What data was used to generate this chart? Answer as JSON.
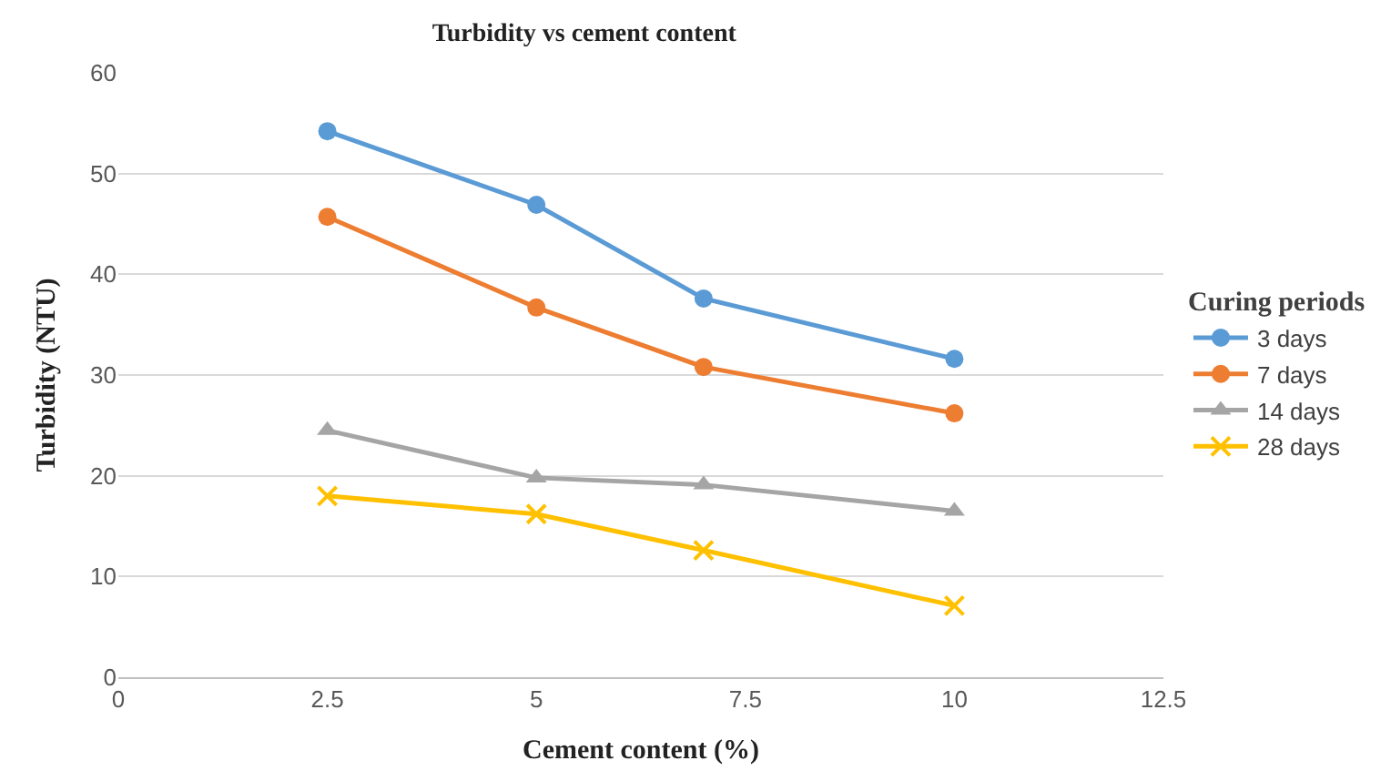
{
  "chart_data": {
    "type": "line",
    "title": "Turbidity vs cement content",
    "xlabel": "Cement content (%)",
    "ylabel": "Turbidity (NTU)",
    "legend_title": "Curing periods",
    "x": [
      2.5,
      5,
      7,
      10
    ],
    "series": [
      {
        "name": "3 days",
        "color": "#5b9bd5",
        "marker": "circle",
        "values": [
          54.2,
          46.9,
          37.6,
          31.6
        ]
      },
      {
        "name": "7 days",
        "color": "#ed7d31",
        "marker": "circle",
        "values": [
          45.7,
          36.7,
          30.8,
          26.2
        ]
      },
      {
        "name": "14 days",
        "color": "#a5a5a5",
        "marker": "triangle",
        "values": [
          24.5,
          19.8,
          19.1,
          16.5
        ]
      },
      {
        "name": "28 days",
        "color": "#ffc000",
        "marker": "cross",
        "values": [
          18.0,
          16.2,
          12.6,
          7.1
        ]
      }
    ],
    "xlim": [
      0,
      12.5
    ],
    "xticks": [
      0,
      2.5,
      5,
      7.5,
      10,
      12.5
    ],
    "ylim": [
      0,
      60
    ],
    "yticks": [
      0,
      10,
      20,
      30,
      40,
      50,
      60
    ],
    "grid": "y",
    "legend": "right"
  }
}
